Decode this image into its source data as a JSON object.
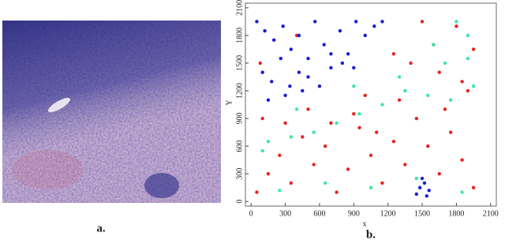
{
  "figure_labels": [
    "a.",
    "b."
  ],
  "chart_data": {
    "type": "scatter",
    "xlabel": "x",
    "ylabel": "Y",
    "xlim": [
      -50,
      2150
    ],
    "ylim": [
      -50,
      2150
    ],
    "xticks": [
      0,
      300,
      600,
      900,
      1200,
      1500,
      1800,
      2100
    ],
    "yticks": [
      0,
      300,
      600,
      900,
      1200,
      1500,
      1800,
      2100
    ],
    "series": [
      {
        "color": "#e8231e",
        "x": [
          50,
          150,
          250,
          350,
          450,
          550,
          650,
          750,
          850,
          950,
          1050,
          1150,
          1250,
          1350,
          1450,
          1550,
          1650,
          1750,
          1850,
          1950,
          100,
          300,
          500,
          700,
          900,
          1100,
          1300,
          1700,
          1900,
          1400,
          1600,
          1800,
          1250,
          1650,
          1950,
          80,
          400,
          1000,
          1500,
          1850
        ],
        "values": [
          100,
          300,
          500,
          200,
          700,
          400,
          600,
          100,
          350,
          800,
          500,
          200,
          650,
          400,
          900,
          600,
          300,
          750,
          450,
          150,
          900,
          850,
          1000,
          850,
          950,
          750,
          1100,
          1000,
          1200,
          1500,
          1700,
          1900,
          1600,
          1400,
          1650,
          1500,
          1800,
          1150,
          1950,
          1300
        ]
      },
      {
        "color": "#1a1adb",
        "x": [
          50,
          120,
          200,
          280,
          350,
          420,
          500,
          560,
          640,
          700,
          780,
          850,
          920,
          1000,
          1080,
          1150,
          100,
          180,
          260,
          340,
          420,
          500,
          600,
          700,
          800,
          900,
          150,
          300,
          450,
          1480,
          1520,
          1560,
          1500,
          1450,
          1540
        ],
        "values": [
          1950,
          1850,
          1750,
          1900,
          1650,
          1800,
          1550,
          1950,
          1700,
          1450,
          1850,
          1600,
          1950,
          1800,
          1900,
          1950,
          1400,
          1300,
          1550,
          1250,
          1400,
          1350,
          1250,
          1600,
          1500,
          1450,
          1100,
          1150,
          1200,
          150,
          200,
          120,
          250,
          80,
          60
        ]
      },
      {
        "color": "#3de8a0",
        "x": [
          150,
          350,
          550,
          750,
          950,
          1150,
          1350,
          1550,
          1750,
          1950,
          250,
          650,
          1050,
          1450,
          1850,
          100,
          400,
          900,
          1300,
          1700,
          1900,
          1800,
          1600,
          1900
        ],
        "values": [
          650,
          700,
          750,
          850,
          950,
          1050,
          1200,
          1150,
          1100,
          1250,
          120,
          200,
          150,
          250,
          100,
          550,
          1000,
          1250,
          1350,
          1500,
          1800,
          1950,
          1700,
          1550
        ]
      }
    ]
  }
}
